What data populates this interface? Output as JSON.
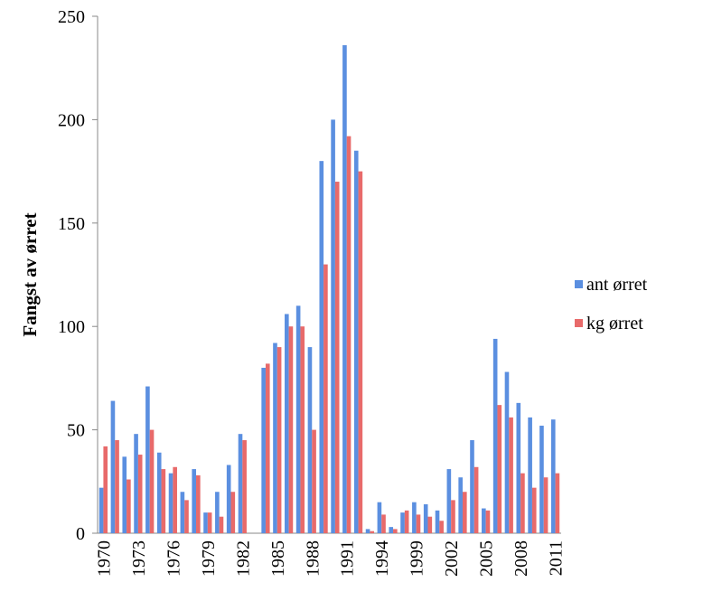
{
  "chart_data": {
    "type": "bar",
    "y_label": "Fangst av ørret",
    "categories": [
      "1970",
      null,
      null,
      "1973",
      null,
      null,
      "1976",
      null,
      null,
      "1979",
      null,
      null,
      "1982",
      null,
      null,
      "1985",
      null,
      null,
      "1988",
      null,
      null,
      "1991",
      null,
      null,
      "1994",
      null,
      null,
      "1999",
      null,
      null,
      "2002",
      null,
      null,
      "2005",
      null,
      null,
      "2008",
      null,
      null,
      "2011"
    ],
    "series": [
      {
        "name": "ant ørret",
        "color": "#5b8fe0",
        "values": [
          22,
          64,
          37,
          48,
          71,
          39,
          29,
          20,
          31,
          10,
          20,
          33,
          48,
          null,
          80,
          92,
          106,
          110,
          90,
          180,
          200,
          236,
          185,
          2,
          15,
          3,
          10,
          15,
          14,
          11,
          31,
          27,
          45,
          12,
          94,
          78,
          63,
          56,
          52,
          55
        ]
      },
      {
        "name": "kg ørret",
        "color": "#e86a6a",
        "values": [
          42,
          45,
          26,
          38,
          50,
          31,
          32,
          16,
          28,
          10,
          8,
          20,
          45,
          null,
          82,
          90,
          100,
          100,
          50,
          130,
          170,
          192,
          175,
          1,
          9,
          2,
          11,
          9,
          8,
          6,
          16,
          20,
          32,
          11,
          62,
          56,
          29,
          22,
          27,
          29
        ]
      }
    ],
    "ylim": [
      0,
      250
    ],
    "yticks": [
      0,
      50,
      100,
      150,
      200,
      250
    ],
    "grid": false,
    "legend": "right"
  }
}
